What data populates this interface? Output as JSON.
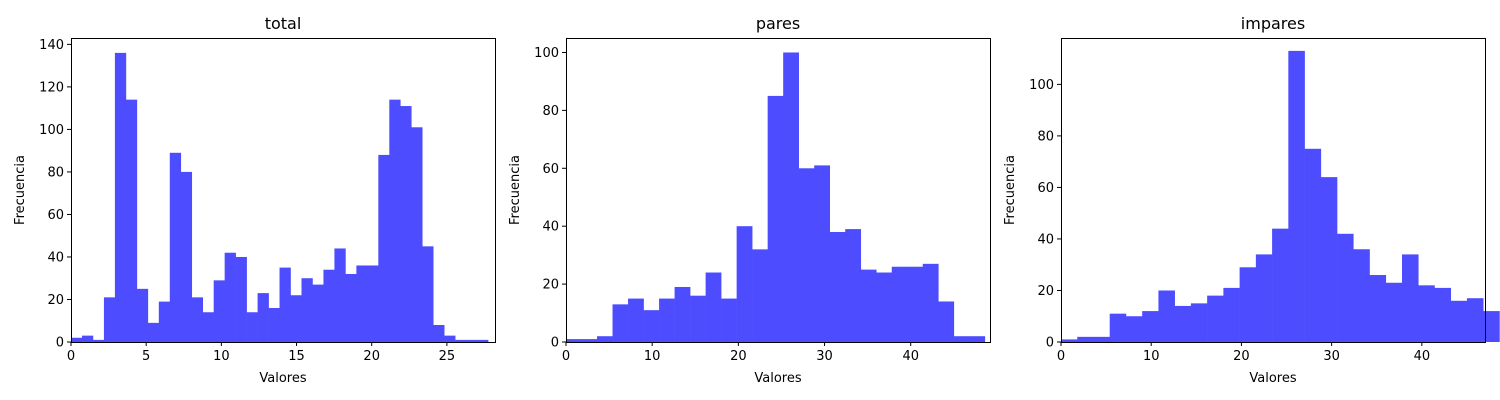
{
  "colors": {
    "bar": "#4d4dff",
    "axes": "#000000",
    "background": "#ffffff"
  },
  "chart_data": [
    {
      "type": "bar",
      "title": "total",
      "xlabel": "Valores",
      "ylabel": "Frecuencia",
      "xlim": [
        0,
        28.2
      ],
      "ylim": [
        0,
        143
      ],
      "xticks": [
        0,
        5,
        10,
        15,
        20,
        25
      ],
      "yticks": [
        0,
        20,
        40,
        60,
        80,
        100,
        120,
        140
      ],
      "bins_start": 0,
      "bin_width": 0.73,
      "values": [
        2,
        3,
        1,
        21,
        136,
        114,
        25,
        9,
        19,
        89,
        80,
        21,
        14,
        29,
        42,
        40,
        14,
        23,
        16,
        35,
        22,
        30,
        27,
        34,
        44,
        32,
        36,
        36,
        88,
        114,
        111,
        101,
        45,
        8,
        3,
        1,
        1,
        1
      ]
    },
    {
      "type": "bar",
      "title": "pares",
      "xlabel": "Valores",
      "ylabel": "Frecuencia",
      "xlim": [
        0,
        49.2
      ],
      "ylim": [
        0,
        105
      ],
      "xticks": [
        0,
        10,
        20,
        30,
        40
      ],
      "yticks": [
        0,
        20,
        40,
        60,
        80,
        100
      ],
      "bins_start": 0,
      "bin_width": 1.8,
      "values": [
        1,
        1,
        2,
        13,
        15,
        11,
        15,
        19,
        16,
        24,
        15,
        40,
        32,
        85,
        100,
        60,
        61,
        38,
        39,
        25,
        24,
        26,
        26,
        27,
        14,
        2,
        2
      ]
    },
    {
      "type": "bar",
      "title": "impares",
      "xlabel": "Valores",
      "ylabel": "Frecuencia",
      "xlim": [
        0,
        47.0
      ],
      "ylim": [
        0,
        118
      ],
      "xticks": [
        0,
        10,
        20,
        30,
        40
      ],
      "yticks": [
        0,
        20,
        40,
        60,
        80,
        100
      ],
      "bins_start": 0,
      "bin_width": 1.8,
      "values": [
        1,
        2,
        2,
        11,
        10,
        12,
        20,
        14,
        15,
        18,
        21,
        29,
        34,
        44,
        113,
        75,
        64,
        42,
        36,
        26,
        23,
        34,
        22,
        21,
        16,
        17,
        12
      ]
    }
  ]
}
